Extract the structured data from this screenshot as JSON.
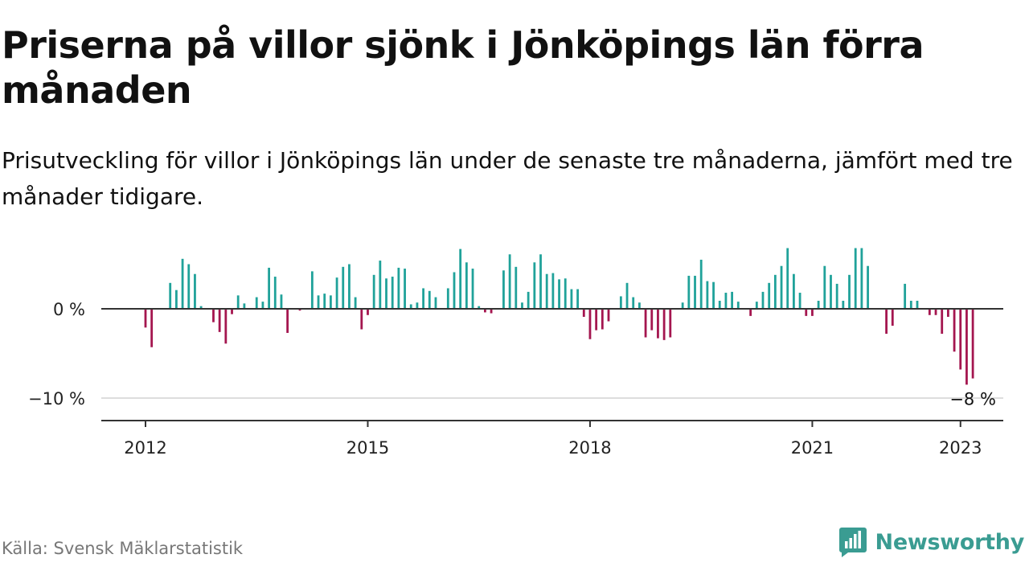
{
  "title": "Priserna på villor sjönk i Jönköpings län förra månaden",
  "subtitle": "Prisutveckling för villor i Jönköpings län under de senaste tre månaderna, jämfört med tre månader tidigare.",
  "source": "Källa: Svensk Mäklarstatistik",
  "brand": "Newsworthy",
  "colors": {
    "positive": "#20a29a",
    "negative": "#a4164f",
    "axis": "#333333",
    "grid": "#dddddd",
    "brand": "#3a9c92"
  },
  "chart_data": {
    "type": "bar",
    "x_start": "2012-01",
    "x_interval": "month",
    "values": [
      -2.1,
      -4.3,
      0,
      0,
      2.9,
      2.1,
      5.6,
      5.0,
      3.9,
      0.3,
      0,
      -1.5,
      -2.6,
      -3.9,
      -0.6,
      1.5,
      0.6,
      0,
      1.3,
      0.8,
      4.6,
      3.6,
      1.6,
      -2.7,
      0,
      -0.2,
      0,
      4.2,
      1.5,
      1.7,
      1.5,
      3.5,
      4.7,
      5.0,
      1.3,
      -2.3,
      -0.7,
      3.8,
      5.4,
      3.4,
      3.6,
      4.6,
      4.5,
      0.5,
      0.7,
      2.3,
      2.0,
      1.3,
      0,
      2.3,
      4.1,
      6.7,
      5.2,
      4.5,
      0.3,
      -0.4,
      -0.5,
      0,
      4.3,
      6.1,
      4.7,
      0.7,
      1.9,
      5.2,
      6.1,
      3.9,
      4.0,
      3.3,
      3.4,
      2.2,
      2.2,
      -0.9,
      -3.4,
      -2.4,
      -2.3,
      -1.4,
      0,
      1.4,
      2.9,
      1.3,
      0.7,
      -3.2,
      -2.4,
      -3.3,
      -3.5,
      -3.2,
      0,
      0.7,
      3.7,
      3.7,
      5.5,
      3.1,
      3.0,
      0.9,
      1.8,
      1.9,
      0.8,
      0,
      -0.8,
      0.8,
      1.9,
      2.9,
      3.8,
      4.8,
      6.8,
      3.9,
      1.8,
      -0.8,
      -0.8,
      0.9,
      4.8,
      3.8,
      2.8,
      0.9,
      3.8,
      6.8,
      6.8,
      4.8,
      0,
      0,
      -2.8,
      -1.9,
      0,
      2.8,
      0.9,
      0.9,
      0,
      -0.7,
      -0.7,
      -2.8,
      -0.9,
      -4.8,
      -6.8,
      -8.5,
      -7.8
    ],
    "annotation": "−8 %",
    "x_ticks": [
      "2012",
      "2015",
      "2018",
      "2021",
      "2023"
    ],
    "y_ticks": [
      "0 %",
      "−10 %"
    ],
    "ylim": [
      -12,
      7
    ]
  }
}
